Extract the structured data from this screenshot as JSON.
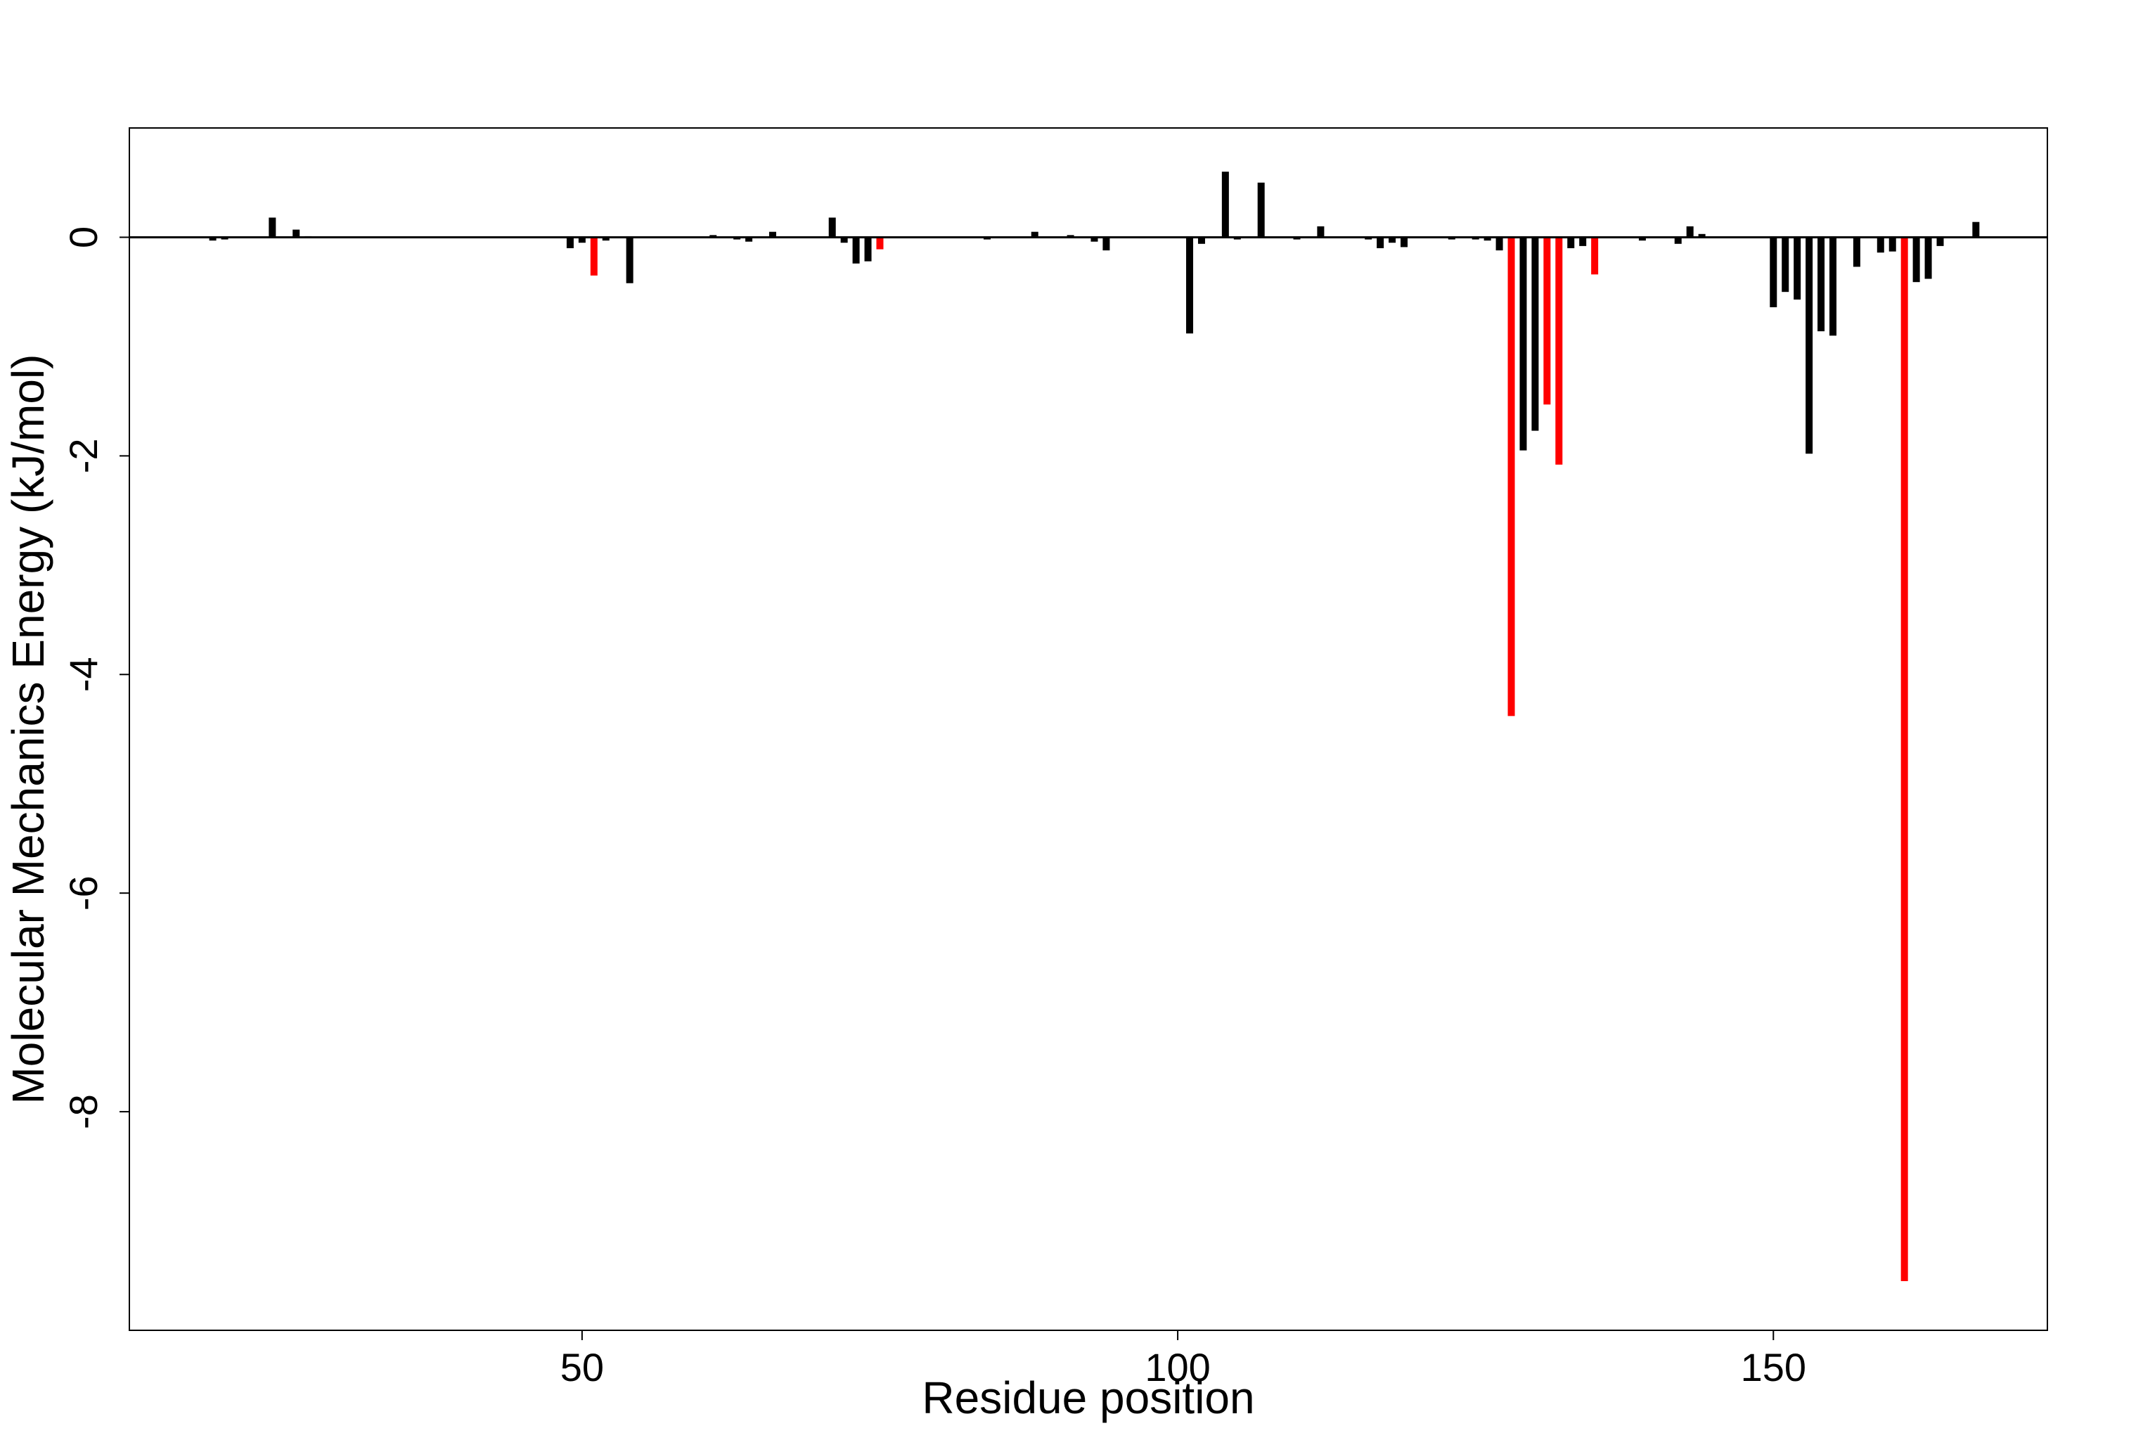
{
  "chart_data": {
    "type": "bar",
    "title": "",
    "xlabel": "Residue position",
    "ylabel": "Molecular Mechanics Energy (kJ/mol)",
    "xlim": [
      12,
      173
    ],
    "ylim": [
      -10,
      1
    ],
    "x_ticks": [
      50,
      100,
      150
    ],
    "y_ticks": [
      0,
      -2,
      -4,
      -6,
      -8
    ],
    "baseline": 0,
    "grid": false,
    "legend": "none",
    "colors": {
      "default": "#000000",
      "highlight": "#ff0000"
    },
    "bars": [
      {
        "x": 19,
        "value": -0.03,
        "color": "#000000"
      },
      {
        "x": 20,
        "value": -0.02,
        "color": "#000000"
      },
      {
        "x": 24,
        "value": 0.18,
        "color": "#000000"
      },
      {
        "x": 26,
        "value": 0.07,
        "color": "#000000"
      },
      {
        "x": 27,
        "value": 0.01,
        "color": "#000000"
      },
      {
        "x": 35,
        "value": -0.01,
        "color": "#000000"
      },
      {
        "x": 49,
        "value": -0.1,
        "color": "#000000"
      },
      {
        "x": 50,
        "value": -0.05,
        "color": "#000000"
      },
      {
        "x": 51,
        "value": -0.35,
        "color": "#ff0000"
      },
      {
        "x": 52,
        "value": -0.03,
        "color": "#000000"
      },
      {
        "x": 54,
        "value": -0.42,
        "color": "#000000"
      },
      {
        "x": 61,
        "value": 0.02,
        "color": "#000000"
      },
      {
        "x": 63,
        "value": -0.02,
        "color": "#000000"
      },
      {
        "x": 64,
        "value": -0.04,
        "color": "#000000"
      },
      {
        "x": 66,
        "value": 0.05,
        "color": "#000000"
      },
      {
        "x": 71,
        "value": 0.18,
        "color": "#000000"
      },
      {
        "x": 72,
        "value": -0.05,
        "color": "#000000"
      },
      {
        "x": 73,
        "value": -0.24,
        "color": "#000000"
      },
      {
        "x": 74,
        "value": -0.22,
        "color": "#000000"
      },
      {
        "x": 75,
        "value": -0.11,
        "color": "#ff0000"
      },
      {
        "x": 84,
        "value": -0.02,
        "color": "#000000"
      },
      {
        "x": 88,
        "value": 0.05,
        "color": "#000000"
      },
      {
        "x": 91,
        "value": 0.02,
        "color": "#000000"
      },
      {
        "x": 93,
        "value": -0.04,
        "color": "#000000"
      },
      {
        "x": 94,
        "value": -0.12,
        "color": "#000000"
      },
      {
        "x": 97,
        "value": -0.01,
        "color": "#000000"
      },
      {
        "x": 101,
        "value": -0.88,
        "color": "#000000"
      },
      {
        "x": 102,
        "value": -0.06,
        "color": "#000000"
      },
      {
        "x": 104,
        "value": 0.6,
        "color": "#000000"
      },
      {
        "x": 105,
        "value": -0.02,
        "color": "#000000"
      },
      {
        "x": 107,
        "value": 0.5,
        "color": "#000000"
      },
      {
        "x": 110,
        "value": -0.02,
        "color": "#000000"
      },
      {
        "x": 112,
        "value": 0.1,
        "color": "#000000"
      },
      {
        "x": 116,
        "value": -0.02,
        "color": "#000000"
      },
      {
        "x": 117,
        "value": -0.1,
        "color": "#000000"
      },
      {
        "x": 118,
        "value": -0.05,
        "color": "#000000"
      },
      {
        "x": 119,
        "value": -0.09,
        "color": "#000000"
      },
      {
        "x": 123,
        "value": -0.02,
        "color": "#000000"
      },
      {
        "x": 125,
        "value": -0.02,
        "color": "#000000"
      },
      {
        "x": 126,
        "value": -0.03,
        "color": "#000000"
      },
      {
        "x": 127,
        "value": -0.12,
        "color": "#000000"
      },
      {
        "x": 128,
        "value": -4.38,
        "color": "#ff0000"
      },
      {
        "x": 129,
        "value": -1.95,
        "color": "#000000"
      },
      {
        "x": 130,
        "value": -1.77,
        "color": "#000000"
      },
      {
        "x": 131,
        "value": -1.53,
        "color": "#ff0000"
      },
      {
        "x": 132,
        "value": -2.08,
        "color": "#ff0000"
      },
      {
        "x": 133,
        "value": -0.1,
        "color": "#000000"
      },
      {
        "x": 134,
        "value": -0.08,
        "color": "#000000"
      },
      {
        "x": 135,
        "value": -0.34,
        "color": "#ff0000"
      },
      {
        "x": 139,
        "value": -0.03,
        "color": "#000000"
      },
      {
        "x": 142,
        "value": -0.06,
        "color": "#000000"
      },
      {
        "x": 143,
        "value": 0.1,
        "color": "#000000"
      },
      {
        "x": 144,
        "value": 0.03,
        "color": "#000000"
      },
      {
        "x": 150,
        "value": -0.64,
        "color": "#000000"
      },
      {
        "x": 151,
        "value": -0.5,
        "color": "#000000"
      },
      {
        "x": 152,
        "value": -0.57,
        "color": "#000000"
      },
      {
        "x": 153,
        "value": -1.98,
        "color": "#000000"
      },
      {
        "x": 154,
        "value": -0.86,
        "color": "#000000"
      },
      {
        "x": 155,
        "value": -0.9,
        "color": "#000000"
      },
      {
        "x": 157,
        "value": -0.27,
        "color": "#000000"
      },
      {
        "x": 159,
        "value": -0.14,
        "color": "#000000"
      },
      {
        "x": 160,
        "value": -0.13,
        "color": "#000000"
      },
      {
        "x": 161,
        "value": -9.55,
        "color": "#ff0000"
      },
      {
        "x": 162,
        "value": -0.41,
        "color": "#000000"
      },
      {
        "x": 163,
        "value": -0.38,
        "color": "#000000"
      },
      {
        "x": 164,
        "value": -0.08,
        "color": "#000000"
      },
      {
        "x": 167,
        "value": 0.14,
        "color": "#000000"
      }
    ]
  }
}
